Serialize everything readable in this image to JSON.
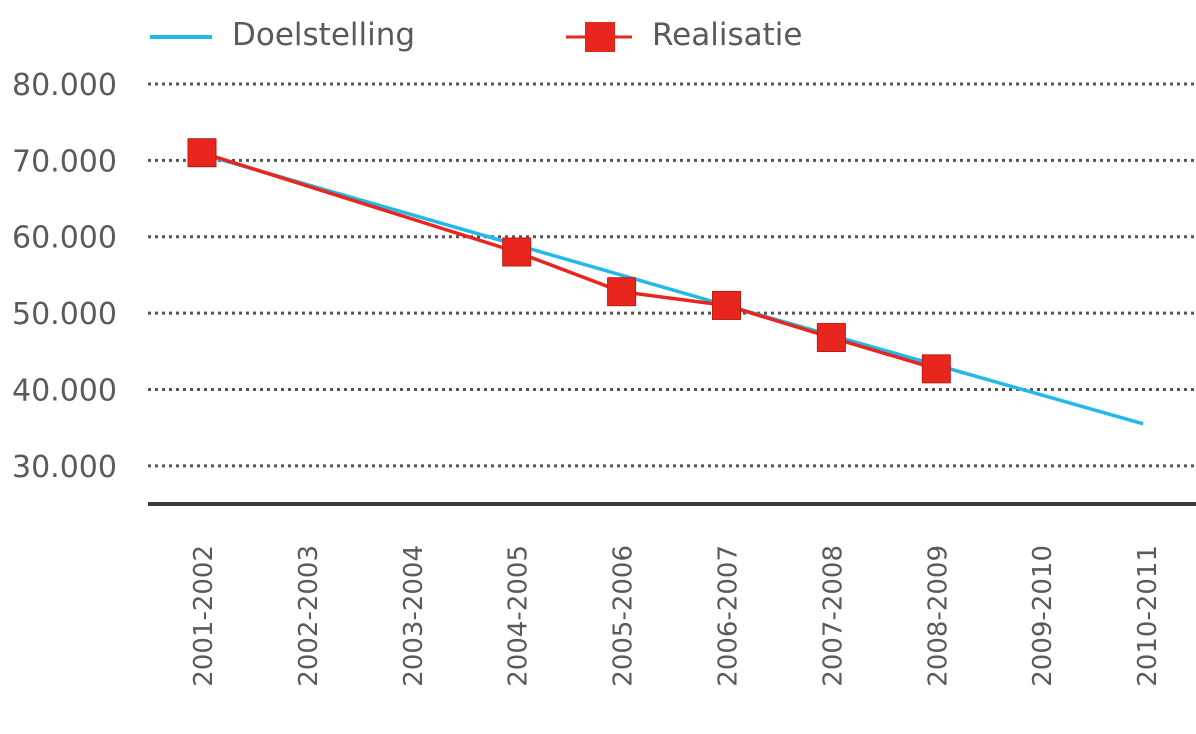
{
  "chart_data": {
    "type": "line",
    "categories": [
      "2001-2002",
      "2002-2003",
      "2003-2004",
      "2004-2005",
      "2005-2006",
      "2006-2007",
      "2007-2008",
      "2008-2009",
      "2009-2010",
      "2010-2011"
    ],
    "ylim": [
      25000,
      80000
    ],
    "yticks": [
      80000,
      70000,
      60000,
      50000,
      40000,
      30000
    ],
    "ytick_labels": [
      "80.000",
      "70.000",
      "60.000",
      "50.000",
      "40.000",
      "30.000"
    ],
    "grid": true,
    "legend_position": "top",
    "series": [
      {
        "name": "Doelstelling",
        "color": "#22b8ea",
        "marker": "none",
        "values": [
          70800,
          null,
          null,
          null,
          null,
          51000,
          null,
          null,
          null,
          35500
        ]
      },
      {
        "name": "Realisatie",
        "color": "#e8261d",
        "marker": "square",
        "values": [
          71000,
          null,
          null,
          58000,
          52800,
          51000,
          46800,
          42700,
          null,
          null
        ]
      }
    ]
  }
}
